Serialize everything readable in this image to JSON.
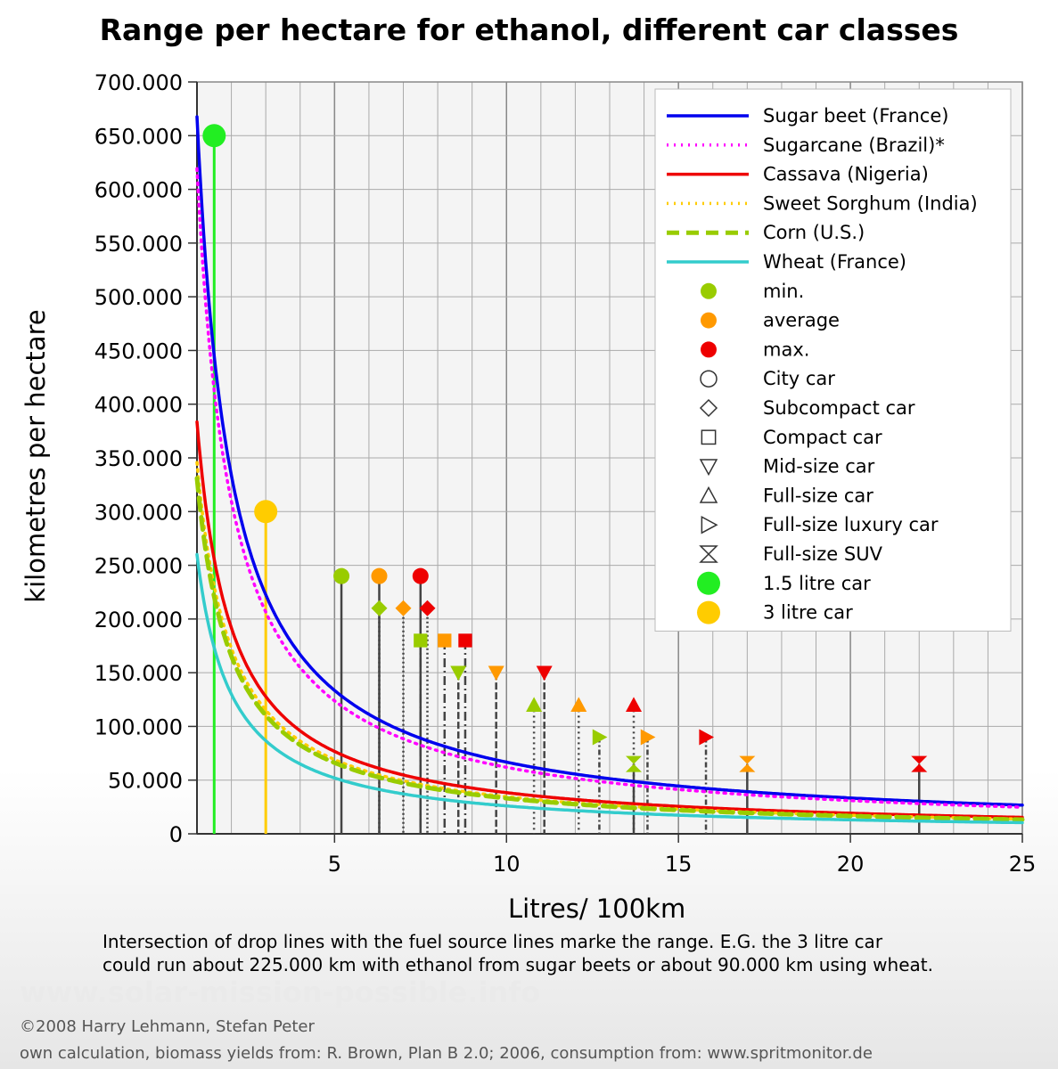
{
  "title": "Range per hectare for ethanol, different car classes",
  "notes": {
    "line1": "Intersection of drop lines with the fuel source lines marke the range. E.G. the 3 litre car",
    "line2": "could run about 225.000 km with ethanol from sugar beets or about 90.000 km using wheat."
  },
  "watermark": "www.solar-mission-possible.info",
  "credits": {
    "copyright": "©2008 Harry Lehmann, Stefan Peter",
    "sources": "own calculation, biomass yields from: R. Brown, Plan B 2.0; 2006, consumption from: www.spritmonitor.de"
  },
  "chart_data": {
    "type": "line",
    "title": "Range per hectare for ethanol, different car classes",
    "xlabel": "Litres/ 100km",
    "ylabel": "kilometres per hectare",
    "xlim": [
      1,
      25
    ],
    "ylim": [
      0,
      700000
    ],
    "x_ticks": [
      5,
      10,
      15,
      20,
      25
    ],
    "y_ticks": [
      0,
      50000,
      100000,
      150000,
      200000,
      250000,
      300000,
      350000,
      400000,
      450000,
      500000,
      550000,
      600000,
      650000,
      700000
    ],
    "x_tick_labels": [
      "5",
      "10",
      "15",
      "20",
      "25"
    ],
    "y_tick_labels": [
      "0",
      "50.000",
      "100.000",
      "150.000",
      "200.000",
      "250.000",
      "300.000",
      "350.000",
      "400.000",
      "450.000",
      "500.000",
      "550.000",
      "600.000",
      "650.000",
      "700.000"
    ],
    "grid": true,
    "legend_position": "top-right",
    "series": [
      {
        "name": "Sugar beet (France)",
        "ethanol_litres_per_hectare": 6676,
        "color": "#0000ee",
        "style": "solid"
      },
      {
        "name": "Sugarcane (Brazil)*",
        "ethanol_litres_per_hectare": 6192,
        "color": "#ff00ff",
        "style": "dotted"
      },
      {
        "name": "Cassava (Nigeria)",
        "ethanol_litres_per_hectare": 3835,
        "color": "#ee0000",
        "style": "solid"
      },
      {
        "name": "Sweet Sorghum (India)",
        "ethanol_litres_per_hectare": 3457,
        "color": "#ffcc00",
        "style": "dotted"
      },
      {
        "name": "Corn (U.S.)",
        "ethanol_litres_per_hectare": 3310,
        "color": "#99cc00",
        "style": "dashed"
      },
      {
        "name": "Wheat (France)",
        "ethanol_litres_per_hectare": 2600,
        "color": "#33cccc",
        "style": "solid"
      }
    ],
    "marker_legend": [
      {
        "label": "min.",
        "kind": "color",
        "color": "#99cc00"
      },
      {
        "label": "average",
        "kind": "color",
        "color": "#ff9900"
      },
      {
        "label": "max.",
        "kind": "color",
        "color": "#ee0000"
      },
      {
        "label": "City car",
        "kind": "shape",
        "shape": "circle"
      },
      {
        "label": "Subcompact car",
        "kind": "shape",
        "shape": "diamond"
      },
      {
        "label": "Compact car",
        "kind": "shape",
        "shape": "square"
      },
      {
        "label": "Mid-size car",
        "kind": "shape",
        "shape": "tri-down"
      },
      {
        "label": "Full-size car",
        "kind": "shape",
        "shape": "tri-up"
      },
      {
        "label": "Full-size luxury car",
        "kind": "shape",
        "shape": "tri-right"
      },
      {
        "label": "Full-size SUV",
        "kind": "shape",
        "shape": "hourglass"
      },
      {
        "label": "1.5 litre car",
        "kind": "special",
        "color": "#22ee22"
      },
      {
        "label": "3 litre car",
        "kind": "special",
        "color": "#ffcc00"
      }
    ],
    "car_points": [
      {
        "class": "City car",
        "shape": "circle",
        "level": "min",
        "x": 5.2,
        "y": 240000
      },
      {
        "class": "City car",
        "shape": "circle",
        "level": "average",
        "x": 6.3,
        "y": 240000
      },
      {
        "class": "City car",
        "shape": "circle",
        "level": "max",
        "x": 7.5,
        "y": 240000
      },
      {
        "class": "Subcompact car",
        "shape": "diamond",
        "level": "min",
        "x": 6.3,
        "y": 210000
      },
      {
        "class": "Subcompact car",
        "shape": "diamond",
        "level": "average",
        "x": 7.0,
        "y": 210000
      },
      {
        "class": "Subcompact car",
        "shape": "diamond",
        "level": "max",
        "x": 7.7,
        "y": 210000
      },
      {
        "class": "Compact car",
        "shape": "square",
        "level": "min",
        "x": 7.5,
        "y": 180000
      },
      {
        "class": "Compact car",
        "shape": "square",
        "level": "average",
        "x": 8.2,
        "y": 180000
      },
      {
        "class": "Compact car",
        "shape": "square",
        "level": "max",
        "x": 8.8,
        "y": 180000
      },
      {
        "class": "Mid-size car",
        "shape": "tri-down",
        "level": "min",
        "x": 8.6,
        "y": 150000
      },
      {
        "class": "Mid-size car",
        "shape": "tri-down",
        "level": "average",
        "x": 9.7,
        "y": 150000
      },
      {
        "class": "Mid-size car",
        "shape": "tri-down",
        "level": "max",
        "x": 11.1,
        "y": 150000
      },
      {
        "class": "Full-size car",
        "shape": "tri-up",
        "level": "min",
        "x": 10.8,
        "y": 120000
      },
      {
        "class": "Full-size car",
        "shape": "tri-up",
        "level": "average",
        "x": 12.1,
        "y": 120000
      },
      {
        "class": "Full-size car",
        "shape": "tri-up",
        "level": "max",
        "x": 13.7,
        "y": 120000
      },
      {
        "class": "Full-size luxury car",
        "shape": "tri-right",
        "level": "min",
        "x": 12.7,
        "y": 90000
      },
      {
        "class": "Full-size luxury car",
        "shape": "tri-right",
        "level": "average",
        "x": 14.1,
        "y": 90000
      },
      {
        "class": "Full-size luxury car",
        "shape": "tri-right",
        "level": "max",
        "x": 15.8,
        "y": 90000
      },
      {
        "class": "Full-size SUV",
        "shape": "hourglass",
        "level": "min",
        "x": 13.7,
        "y": 65000
      },
      {
        "class": "Full-size SUV",
        "shape": "hourglass",
        "level": "average",
        "x": 17.0,
        "y": 65000
      },
      {
        "class": "Full-size SUV",
        "shape": "hourglass",
        "level": "max",
        "x": 22.0,
        "y": 65000
      }
    ],
    "special_points": [
      {
        "label": "1.5 litre car",
        "x": 1.5,
        "y": 650000,
        "color": "#22ee22"
      },
      {
        "label": "3 litre car",
        "x": 3.0,
        "y": 300000,
        "color": "#ffcc00"
      }
    ]
  }
}
